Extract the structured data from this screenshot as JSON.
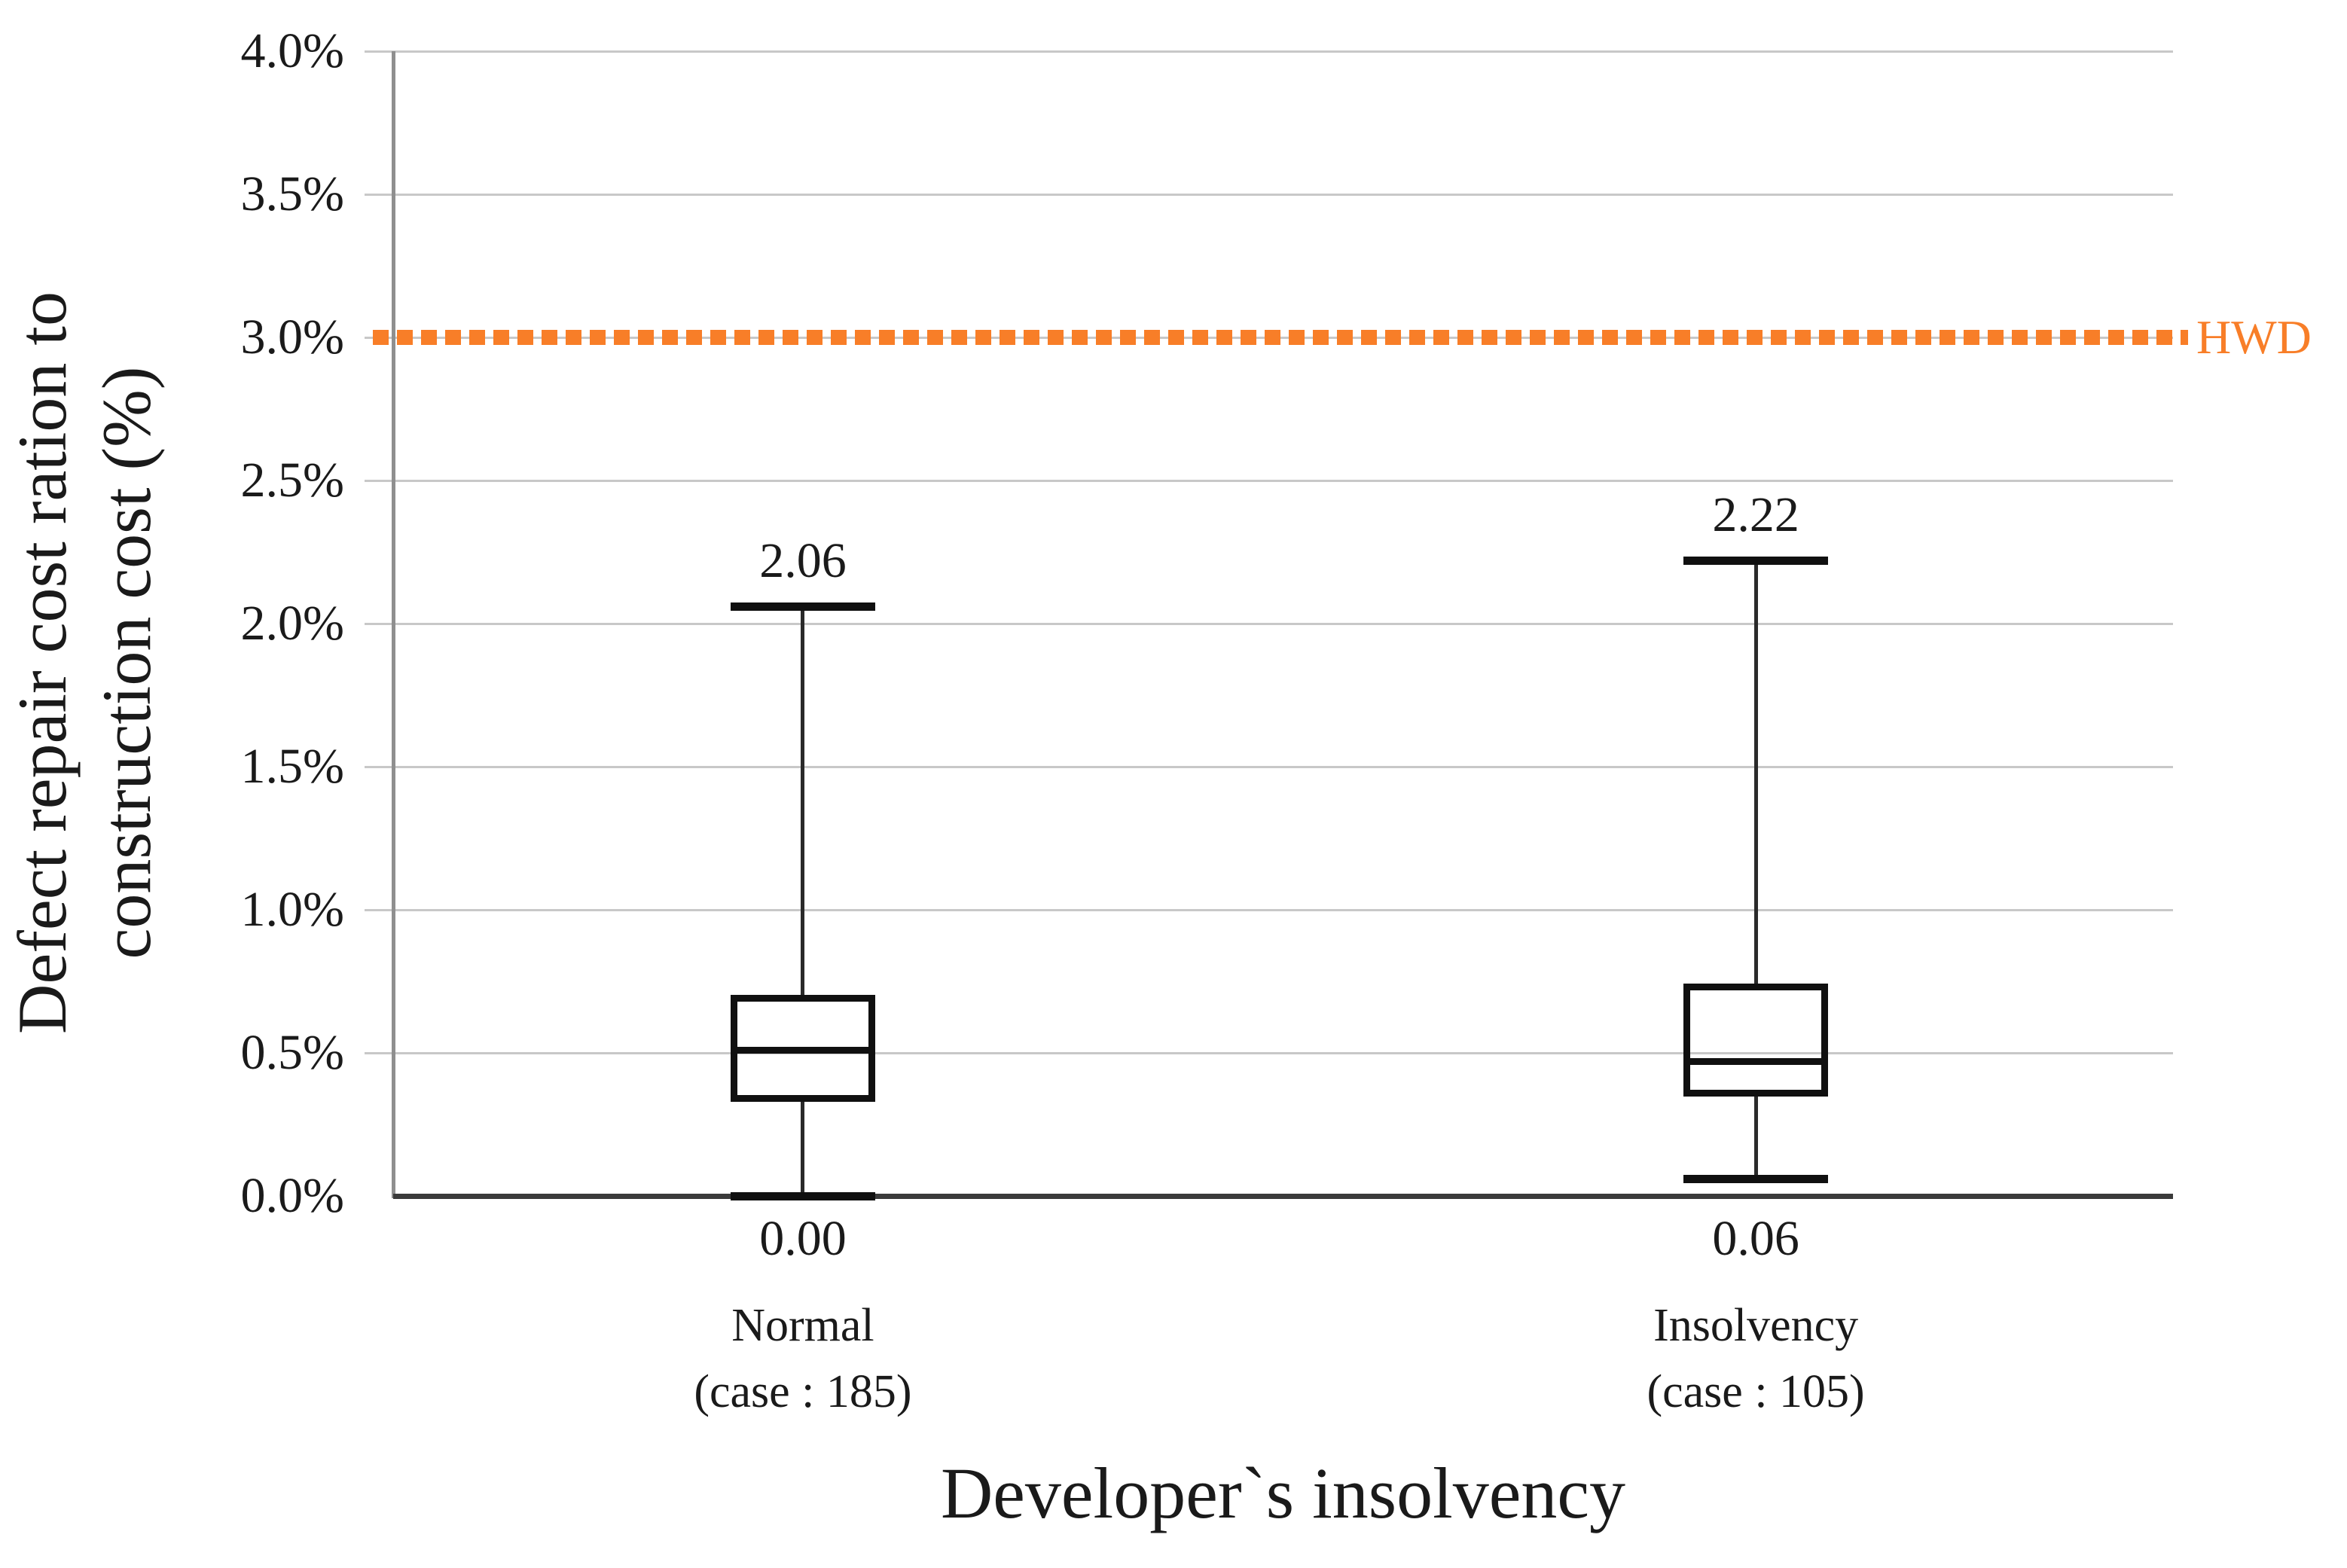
{
  "chart_data": {
    "type": "boxplot",
    "title": "",
    "xlabel": "Developer`s insolvency",
    "ylabel_lines": [
      "Defect repair cost ration to",
      "construction cost (%)"
    ],
    "y_axis": {
      "min": 0.0,
      "max": 4.0,
      "step": 0.5,
      "tick_labels": [
        "4.0%",
        "3.5%",
        "3.0%",
        "2.5%",
        "2.0%",
        "1.5%",
        "1.0%",
        "0.5%",
        "0.0%"
      ],
      "grid": true
    },
    "series": [
      {
        "category": "Normal",
        "case_label": "(case : 185)",
        "whisker_min": 0.0,
        "q1": 0.34,
        "median": 0.51,
        "q3": 0.69,
        "whisker_max": 2.06,
        "min_label": "0.00",
        "max_label": "2.06"
      },
      {
        "category": "Insolvency",
        "case_label": "(case : 105)",
        "whisker_min": 0.06,
        "q1": 0.36,
        "median": 0.47,
        "q3": 0.73,
        "whisker_max": 2.22,
        "min_label": "0.06",
        "max_label": "2.22"
      }
    ],
    "reference_line": {
      "label": "HWD",
      "value": 3.0,
      "style": "dotted",
      "color": "#f87e28"
    },
    "legend_position": "none"
  },
  "colors": {
    "text": "#1a1a1a",
    "gridline": "#c8c8c8",
    "y_axis_line": "#8f8f8f",
    "x_axis_line": "#3a3a3a",
    "box_stroke": "#101010",
    "reference": "#f87e28"
  }
}
